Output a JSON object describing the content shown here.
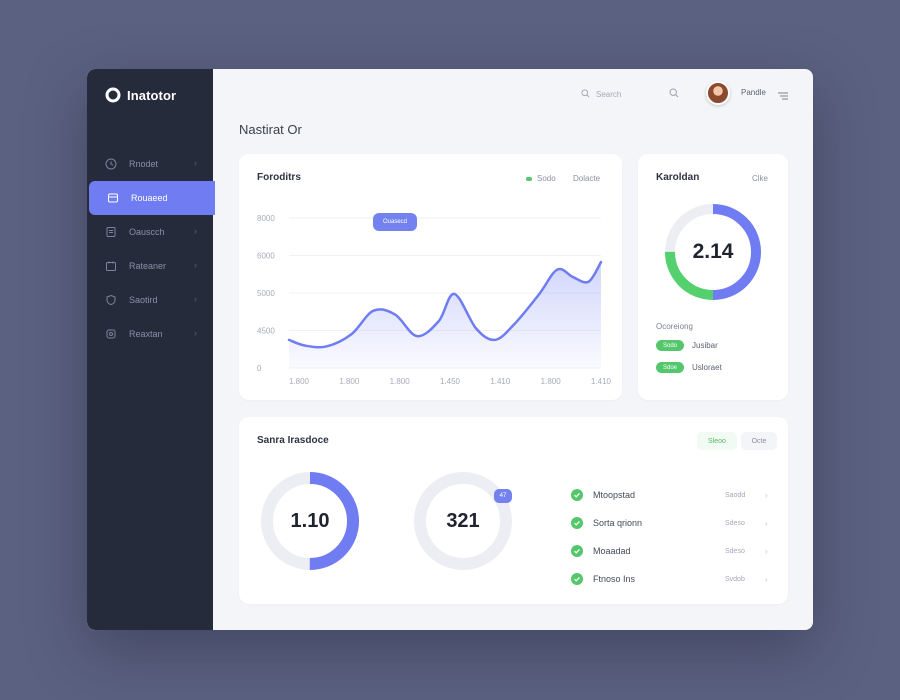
{
  "app": {
    "brand": "Inatotor",
    "page_title": "Nastirat Or"
  },
  "header": {
    "search_placeholder": "Search",
    "user_name": "Pandle"
  },
  "sidebar": {
    "items": [
      {
        "label": "Rnodet",
        "icon": "clock-icon",
        "active": false
      },
      {
        "label": "Rouaeed",
        "icon": "grid-icon",
        "active": true
      },
      {
        "label": "Oauscch",
        "icon": "document-icon",
        "active": false
      },
      {
        "label": "Rateaner",
        "icon": "calendar-icon",
        "active": false
      },
      {
        "label": "Saotird",
        "icon": "shield-icon",
        "active": false
      },
      {
        "label": "Reaxtan",
        "icon": "settings-icon",
        "active": false
      }
    ]
  },
  "main_chart": {
    "title": "Foroditrs",
    "legend_label": "Sodo",
    "legend_right": "Dolacte",
    "tooltip": "Ouasecd",
    "accent": "#6f7cf2"
  },
  "chart_data": {
    "type": "area",
    "title": "Foroditrs",
    "xlabel": "",
    "ylabel": "",
    "y_ticks": [
      "8000",
      "6000",
      "5000",
      "4500",
      "0"
    ],
    "x_ticks": [
      "1.800",
      "1.800",
      "1.800",
      "1.450",
      "1.410",
      "1.800",
      "1.410"
    ],
    "series": [
      {
        "name": "Sodo",
        "values": [
          [
            0,
            1500
          ],
          [
            0.05,
            1200
          ],
          [
            0.12,
            1150
          ],
          [
            0.2,
            1800
          ],
          [
            0.27,
            3050
          ],
          [
            0.34,
            2850
          ],
          [
            0.41,
            1700
          ],
          [
            0.48,
            2500
          ],
          [
            0.53,
            3950
          ],
          [
            0.6,
            2100
          ],
          [
            0.66,
            1500
          ],
          [
            0.72,
            2300
          ],
          [
            0.8,
            3900
          ],
          [
            0.86,
            5250
          ],
          [
            0.91,
            4850
          ],
          [
            0.96,
            4600
          ],
          [
            1.0,
            5650
          ]
        ]
      }
    ],
    "ylim": [
      0,
      8000
    ],
    "grid": true
  },
  "ring_card": {
    "title": "Karoldan",
    "action": "Clke",
    "center_value": "2.14",
    "fraction_blue": 0.5,
    "fraction_green": 0.25,
    "section_label": "Ocoreiong",
    "legend": [
      {
        "pill": "Sodo",
        "label": "Jusibar"
      },
      {
        "pill": "Sdoe",
        "label": "Usloraet"
      }
    ]
  },
  "bottom_card": {
    "title": "Sanra Irasdoce",
    "tab_active": "Sleoo",
    "tab_other": "Octe",
    "donut1": {
      "value": "1.10",
      "fraction": 0.5
    },
    "donut2": {
      "value": "321",
      "fraction": 0.0,
      "badge": "47"
    },
    "list": [
      {
        "label": "Mtoopstad",
        "value": "Saodd"
      },
      {
        "label": "Sorta qrionn",
        "value": "Sdeso"
      },
      {
        "label": "Moaadad",
        "value": "Sdeso"
      },
      {
        "label": "Ftnoso Ins",
        "value": "Svdob"
      }
    ]
  },
  "colors": {
    "sidebar_bg": "#262b3c",
    "accent": "#6f7cf2",
    "green": "#54c66b",
    "page_bg": "#5b6180"
  }
}
